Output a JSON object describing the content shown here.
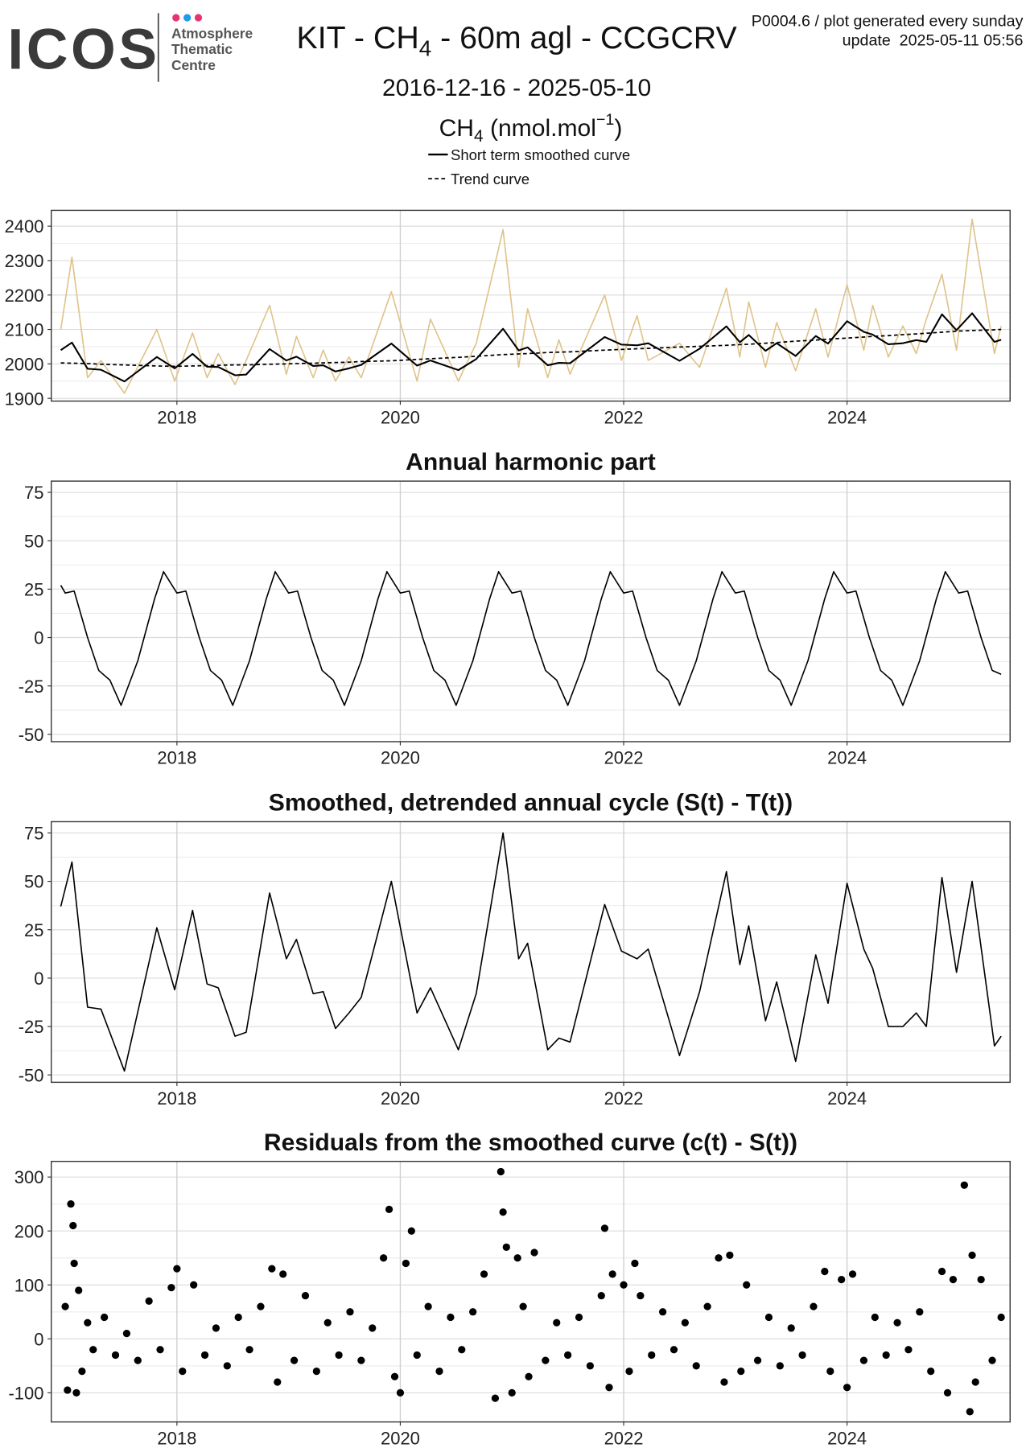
{
  "header": {
    "logo": "ICOS",
    "logo_lines": [
      "Atmosphere",
      "Thematic",
      "Centre"
    ],
    "title_parts": [
      "KIT - CH",
      "4",
      " - 60m agl - CCGCRV"
    ],
    "note": "P0004.6 / plot generated every sunday",
    "update": "update  2025-05-11 05:56",
    "period": "2016-12-16 - 2025-05-10"
  },
  "chart_data": [
    {
      "type": "line",
      "ylabel_parts": [
        "CH",
        "4",
        " (nmol.mol",
        "−1",
        ")"
      ],
      "x": [
        2016.96,
        2017.06,
        2017.2,
        2017.32,
        2017.53,
        2017.82,
        2017.98,
        2018.14,
        2018.27,
        2018.37,
        2018.52,
        2018.62,
        2018.83,
        2018.98,
        2019.07,
        2019.22,
        2019.31,
        2019.42,
        2019.54,
        2019.65,
        2019.92,
        2020.15,
        2020.27,
        2020.52,
        2020.68,
        2020.92,
        2021.06,
        2021.14,
        2021.32,
        2021.42,
        2021.52,
        2021.83,
        2021.98,
        2022.12,
        2022.22,
        2022.5,
        2022.68,
        2022.92,
        2023.04,
        2023.12,
        2023.27,
        2023.37,
        2023.54,
        2023.72,
        2023.83,
        2024.0,
        2024.15,
        2024.23,
        2024.37,
        2024.5,
        2024.62,
        2024.71,
        2024.85,
        2024.98,
        2025.12,
        2025.32,
        2025.38
      ],
      "series": [
        {
          "color": "#dfc38a",
          "values": [
            2100,
            2310,
            1960,
            2010,
            1915,
            2100,
            1950,
            2090,
            1960,
            2030,
            1940,
            2010,
            2170,
            1970,
            2080,
            1960,
            2040,
            1950,
            2020,
            1960,
            2210,
            1950,
            2130,
            1950,
            2060,
            2390,
            1990,
            2160,
            1960,
            2070,
            1970,
            2200,
            2010,
            2140,
            2010,
            2060,
            1990,
            2220,
            2020,
            2180,
            1990,
            2120,
            1980,
            2160,
            2020,
            2230,
            2040,
            2170,
            2020,
            2110,
            2030,
            2130,
            2260,
            2040,
            2420,
            2030,
            2110
          ]
        },
        {
          "name": "Trend curve",
          "color": "#000000",
          "dash": true,
          "values": [
            2003,
            2002,
            2001,
            1999,
            1997,
            1994,
            1993,
            1994,
            1995,
            1996,
            1997,
            1997,
            1999,
            2000,
            2001,
            2002,
            2003,
            2004,
            2005,
            2007,
            2009,
            2013,
            2015,
            2019,
            2022,
            2027,
            2029,
            2030,
            2033,
            2034,
            2035,
            2040,
            2042,
            2044,
            2045,
            2049,
            2051,
            2054,
            2056,
            2057,
            2060,
            2062,
            2066,
            2069,
            2072,
            2075,
            2078,
            2080,
            2082,
            2085,
            2087,
            2089,
            2092,
            2095,
            2097,
            2099,
            2100
          ]
        },
        {
          "name": "Short term smoothed curve",
          "color": "#000000",
          "values": [
            2040,
            2062,
            1986,
            1983,
            1949,
            2020,
            1987,
            2029,
            1992,
            1991,
            1967,
            1969,
            2043,
            2010,
            2021,
            1994,
            1996,
            1978,
            1987,
            1997,
            2059,
            1995,
            2010,
            1982,
            2014,
            2102,
            2039,
            2048,
            1996,
            2003,
            2002,
            2078,
            2056,
            2054,
            2060,
            2009,
            2044,
            2109,
            2063,
            2084,
            2038,
            2060,
            2023,
            2081,
            2059,
            2124,
            2093,
            2085,
            2057,
            2060,
            2069,
            2064,
            2144,
            2098,
            2147,
            2064,
            2070
          ]
        }
      ],
      "xlim": [
        2016.875,
        2025.46
      ],
      "ylim": [
        1892,
        2446
      ],
      "xticks": [
        2018,
        2020,
        2022,
        2024
      ],
      "yticks": [
        1900,
        2000,
        2100,
        2200,
        2300,
        2400
      ],
      "grid": true
    },
    {
      "type": "line",
      "title": "Annual harmonic part",
      "x": [
        2016.96,
        2017,
        2017.08,
        2017.2,
        2017.3,
        2017.4,
        2017.5,
        2017.65,
        2017.8,
        2017.88,
        2018,
        2018.08,
        2018.2,
        2018.3,
        2018.4,
        2018.5,
        2018.65,
        2018.8,
        2018.88,
        2019,
        2019.08,
        2019.2,
        2019.3,
        2019.4,
        2019.5,
        2019.65,
        2019.8,
        2019.88,
        2020,
        2020.08,
        2020.2,
        2020.3,
        2020.4,
        2020.5,
        2020.65,
        2020.8,
        2020.88,
        2021,
        2021.08,
        2021.2,
        2021.3,
        2021.4,
        2021.5,
        2021.65,
        2021.8,
        2021.88,
        2022,
        2022.08,
        2022.2,
        2022.3,
        2022.4,
        2022.5,
        2022.65,
        2022.8,
        2022.88,
        2023,
        2023.08,
        2023.2,
        2023.3,
        2023.4,
        2023.5,
        2023.65,
        2023.8,
        2023.88,
        2024,
        2024.08,
        2024.2,
        2024.3,
        2024.4,
        2024.5,
        2024.65,
        2024.8,
        2024.88,
        2025,
        2025.08,
        2025.2,
        2025.3,
        2025.38
      ],
      "series": [
        {
          "color": "#000000",
          "values": [
            27,
            23,
            24,
            0,
            -17,
            -22,
            -35,
            -12,
            20,
            34,
            23,
            24,
            0,
            -17,
            -22,
            -35,
            -12,
            20,
            34,
            23,
            24,
            0,
            -17,
            -22,
            -35,
            -12,
            20,
            34,
            23,
            24,
            0,
            -17,
            -22,
            -35,
            -12,
            20,
            34,
            23,
            24,
            0,
            -17,
            -22,
            -35,
            -12,
            20,
            34,
            23,
            24,
            0,
            -17,
            -22,
            -35,
            -12,
            20,
            34,
            23,
            24,
            0,
            -17,
            -22,
            -35,
            -12,
            20,
            34,
            23,
            24,
            0,
            -17,
            -22,
            -35,
            -12,
            20,
            34,
            23,
            24,
            0,
            -17,
            -19
          ]
        }
      ],
      "xlim": [
        2016.875,
        2025.46
      ],
      "ylim": [
        -53.8,
        80.8
      ],
      "xticks": [
        2018,
        2020,
        2022,
        2024
      ],
      "yticks": [
        -50,
        -25,
        0,
        25,
        50,
        75
      ],
      "grid": true
    },
    {
      "type": "line",
      "title": "Smoothed, detrended annual cycle (S(t) - T(t))",
      "x": [
        2016.96,
        2017.06,
        2017.2,
        2017.32,
        2017.53,
        2017.82,
        2017.98,
        2018.14,
        2018.27,
        2018.37,
        2018.52,
        2018.62,
        2018.83,
        2018.98,
        2019.07,
        2019.22,
        2019.31,
        2019.42,
        2019.54,
        2019.65,
        2019.92,
        2020.15,
        2020.27,
        2020.52,
        2020.68,
        2020.92,
        2021.06,
        2021.14,
        2021.32,
        2021.42,
        2021.52,
        2021.83,
        2021.98,
        2022.12,
        2022.22,
        2022.5,
        2022.68,
        2022.92,
        2023.04,
        2023.12,
        2023.27,
        2023.37,
        2023.54,
        2023.72,
        2023.83,
        2024.0,
        2024.15,
        2024.23,
        2024.37,
        2024.5,
        2024.62,
        2024.71,
        2024.85,
        2024.98,
        2025.12,
        2025.32,
        2025.38
      ],
      "series": [
        {
          "color": "#000000",
          "values": [
            37,
            60,
            -15,
            -16,
            -48,
            26,
            -6,
            35,
            -3,
            -5,
            -30,
            -28,
            44,
            10,
            20,
            -8,
            -7,
            -26,
            -18,
            -10,
            50,
            -18,
            -5,
            -37,
            -8,
            75,
            10,
            18,
            -37,
            -31,
            -33,
            38,
            14,
            10,
            15,
            -40,
            -7,
            55,
            7,
            27,
            -22,
            -2,
            -43,
            12,
            -13,
            49,
            15,
            5,
            -25,
            -25,
            -18,
            -25,
            52,
            3,
            50,
            -35,
            -30
          ]
        }
      ],
      "xlim": [
        2016.875,
        2025.46
      ],
      "ylim": [
        -53.8,
        80.8
      ],
      "xticks": [
        2018,
        2020,
        2022,
        2024
      ],
      "yticks": [
        -50,
        -25,
        0,
        25,
        50,
        75
      ],
      "grid": true
    },
    {
      "type": "scatter",
      "title": "Residuals from the smoothed curve (c(t) - S(t))",
      "color": "#000000",
      "x": [
        2017,
        2017.02,
        2017.05,
        2017.07,
        2017.08,
        2017.1,
        2017.12,
        2017.15,
        2017.2,
        2017.25,
        2017.35,
        2017.45,
        2017.55,
        2017.65,
        2017.75,
        2017.85,
        2017.95,
        2018,
        2018.05,
        2018.15,
        2018.25,
        2018.35,
        2018.45,
        2018.55,
        2018.65,
        2018.75,
        2018.85,
        2018.9,
        2018.95,
        2019.05,
        2019.15,
        2019.25,
        2019.35,
        2019.45,
        2019.55,
        2019.65,
        2019.75,
        2019.85,
        2019.9,
        2019.95,
        2020,
        2020.05,
        2020.1,
        2020.15,
        2020.25,
        2020.35,
        2020.45,
        2020.55,
        2020.65,
        2020.75,
        2020.85,
        2020.9,
        2020.92,
        2020.95,
        2021,
        2021.05,
        2021.1,
        2021.15,
        2021.2,
        2021.3,
        2021.4,
        2021.5,
        2021.6,
        2021.7,
        2021.8,
        2021.83,
        2021.87,
        2021.9,
        2022,
        2022.05,
        2022.1,
        2022.15,
        2022.25,
        2022.35,
        2022.45,
        2022.55,
        2022.65,
        2022.75,
        2022.85,
        2022.9,
        2022.95,
        2023.05,
        2023.1,
        2023.2,
        2023.3,
        2023.4,
        2023.5,
        2023.6,
        2023.7,
        2023.8,
        2023.85,
        2023.95,
        2024,
        2024.05,
        2024.15,
        2024.25,
        2024.35,
        2024.45,
        2024.55,
        2024.65,
        2024.75,
        2024.85,
        2024.9,
        2024.95,
        2025.05,
        2025.1,
        2025.12,
        2025.15,
        2025.2,
        2025.3,
        2025.38
      ],
      "values": [
        60,
        -95,
        250,
        210,
        140,
        -100,
        90,
        -60,
        30,
        -20,
        40,
        -30,
        10,
        -40,
        70,
        -20,
        95,
        130,
        -60,
        100,
        -30,
        20,
        -50,
        40,
        -20,
        60,
        130,
        -80,
        120,
        -40,
        80,
        -60,
        30,
        -30,
        50,
        -40,
        20,
        150,
        240,
        -70,
        -100,
        140,
        200,
        -30,
        60,
        -60,
        40,
        -20,
        50,
        120,
        -110,
        310,
        235,
        170,
        -100,
        150,
        60,
        -70,
        160,
        -40,
        30,
        -30,
        40,
        -50,
        80,
        205,
        -90,
        120,
        100,
        -60,
        140,
        80,
        -30,
        50,
        -20,
        30,
        -50,
        60,
        150,
        -80,
        155,
        -60,
        100,
        -40,
        40,
        -50,
        20,
        -30,
        60,
        125,
        -60,
        110,
        -90,
        120,
        -40,
        40,
        -30,
        30,
        -20,
        50,
        -60,
        125,
        -100,
        110,
        285,
        -135,
        155,
        -80,
        110,
        -40,
        40
      ],
      "xlim": [
        2016.875,
        2025.46
      ],
      "ylim": [
        -154,
        329
      ],
      "xticks": [
        2018,
        2020,
        2022,
        2024
      ],
      "yticks": [
        -100,
        0,
        100,
        200,
        300
      ],
      "grid": true
    }
  ]
}
